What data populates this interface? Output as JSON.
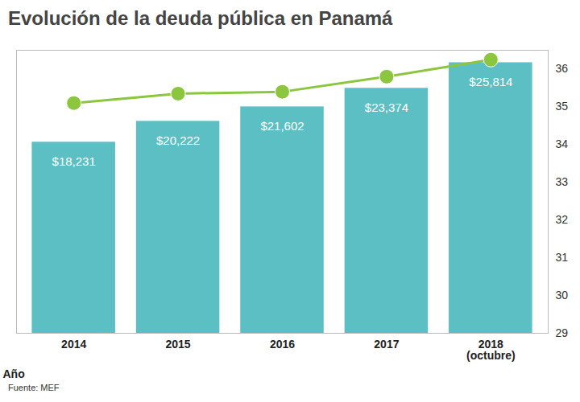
{
  "chart_data": {
    "type": "bar",
    "title": "Evolución de la deuda pública en Panamá",
    "x_label": "Año",
    "caption": "Fuente: MEF",
    "categories": [
      "2014",
      "2015",
      "2016",
      "2017",
      "2018 (octubre)"
    ],
    "series": [
      {
        "type": "bar",
        "values": [
          18231,
          20222,
          21602,
          23374,
          25814
        ],
        "value_labels": [
          "$18,231",
          "$20,222",
          "$21,602",
          "$23,374",
          "$25,814"
        ],
        "color": "#5cbfc4"
      },
      {
        "type": "line",
        "axis": "y2",
        "values": [
          35.1,
          35.35,
          35.4,
          35.8,
          36.25
        ],
        "color": "#8cc63f",
        "marker": "circle"
      }
    ],
    "data_labels": true,
    "ylim": [
      0,
      27000
    ],
    "y2lim": [
      29,
      36.5
    ],
    "y2ticks": [
      29,
      30,
      31,
      32,
      33,
      34,
      35,
      36
    ]
  }
}
